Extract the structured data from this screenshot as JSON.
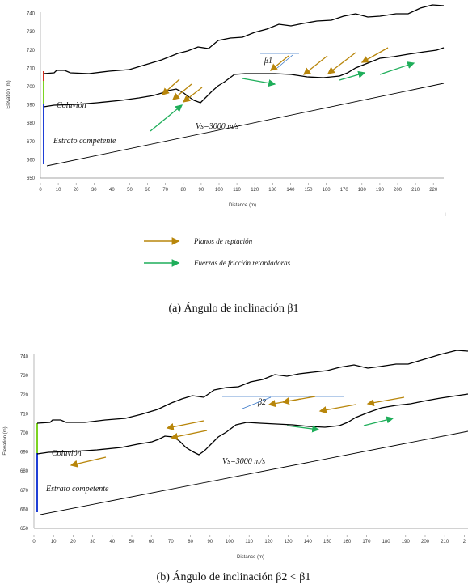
{
  "panel_a": {
    "caption": "(a) Ángulo de inclinación β1",
    "xlabel": "Distance (m)",
    "ylabel": "Elevation (m)",
    "x_ticks": [
      0,
      10,
      20,
      30,
      40,
      50,
      60,
      70,
      80,
      90,
      100,
      110,
      120,
      130,
      140,
      150,
      160,
      170,
      180,
      190,
      200,
      210,
      220
    ],
    "y_ticks": [
      650,
      660,
      670,
      680,
      690,
      700,
      710,
      720,
      730,
      740
    ],
    "label_coluvion": "Coluvión",
    "label_estrato": "Estrato competente",
    "label_vs": "Vs=3000 m/s",
    "label_beta": "β1",
    "stray_mark": "I",
    "legend": [
      {
        "text": "Planos de reptación",
        "color": "#b8860b"
      },
      {
        "text": "Fuerzas de fricción retardadoras",
        "color": "#1fae5a"
      }
    ]
  },
  "panel_b": {
    "caption": "(b) Ángulo de inclinación β2 < β1",
    "xlabel": "Distance (m)",
    "ylabel": "Elevation (m)",
    "x_ticks": [
      0,
      10,
      20,
      30,
      40,
      50,
      60,
      70,
      80,
      90,
      100,
      110,
      120,
      130,
      140,
      150,
      160,
      170,
      180,
      190,
      200,
      210,
      "2"
    ],
    "y_ticks": [
      650,
      660,
      670,
      680,
      690,
      700,
      710,
      720,
      730,
      740
    ],
    "label_coluvion": "Coluvión",
    "label_estrato": "Estrato competente",
    "label_vs": "Vs=3000 m/s",
    "label_beta": "β2"
  },
  "colors": {
    "creep_arrow": "#b8860b",
    "friction_arrow": "#1fae5a",
    "profile": "#000000",
    "axis_green": "#7cd321",
    "axis_blue": "#1f3fd6",
    "beta_line": "#3a78c8"
  }
}
